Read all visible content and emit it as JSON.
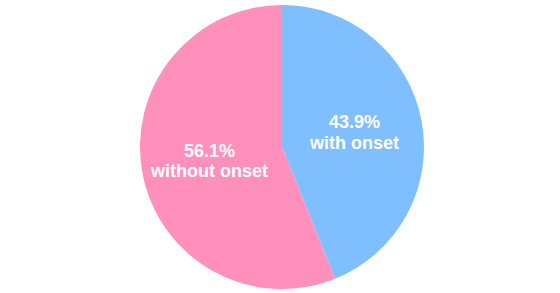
{
  "chart_data": {
    "type": "pie",
    "categories": [
      "with onset",
      "without onset"
    ],
    "values": [
      43.9,
      56.1
    ],
    "value_labels": [
      "43.9%",
      "56.1%"
    ],
    "colors": [
      "#7fbfff",
      "#ff8fbb"
    ],
    "data_labels": true
  }
}
